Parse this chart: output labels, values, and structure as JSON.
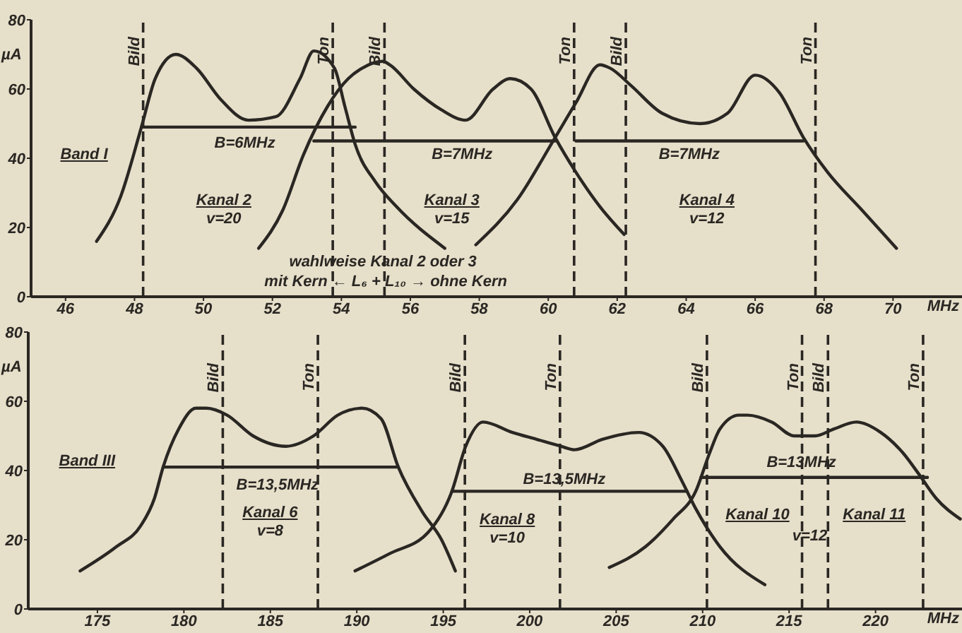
{
  "chart_data": [
    {
      "type": "line",
      "xlabel": "MHz",
      "ylabel": "µA",
      "xlim": [
        45,
        72
      ],
      "xticks": [
        46,
        48,
        50,
        52,
        54,
        56,
        58,
        60,
        62,
        64,
        66,
        68,
        70
      ],
      "ylim": [
        0,
        80
      ],
      "yticks": [
        0,
        20,
        40,
        60,
        80
      ],
      "marker": "none",
      "series": [
        {
          "color": "#2a2723",
          "x": [
            46.9,
            47.6,
            48.2,
            48.6,
            49.2,
            49.8,
            50.5,
            51.3,
            52.1,
            52.8,
            53.2,
            53.8,
            54.1,
            54.4,
            55.0,
            55.6,
            57.0
          ],
          "values": [
            16,
            29,
            49,
            63,
            70,
            66,
            57,
            51,
            52,
            63,
            71,
            66,
            55,
            44,
            33,
            26,
            14
          ]
        },
        {
          "color": "#2a2723",
          "x": [
            51.6,
            52.3,
            52.9,
            53.6,
            54.2,
            54.6,
            55.2,
            55.4,
            56.1,
            56.9,
            57.6,
            58.4,
            58.9,
            59.5,
            60.2,
            60.8,
            61.5,
            62.2
          ],
          "values": [
            14,
            25,
            41,
            55,
            63,
            66,
            68,
            67,
            60,
            54,
            51,
            60,
            63,
            60,
            46,
            36,
            26,
            18
          ]
        },
        {
          "color": "#2a2723",
          "x": [
            57.9,
            59.1,
            60.2,
            60.8,
            61.5,
            61.8,
            62.4,
            63.3,
            64.4,
            65.2,
            66.0,
            66.7,
            67.4,
            68.1,
            69.1,
            70.1
          ],
          "values": [
            15,
            28,
            46,
            56,
            67,
            66,
            61,
            53,
            50,
            53,
            64,
            59,
            46,
            36,
            25,
            14
          ]
        },
        {
          "color": "#2a2723",
          "x": [
            48.2,
            54.4
          ],
          "values": [
            49,
            49
          ]
        },
        {
          "color": "#2a2723",
          "x": [
            53.2,
            60.2
          ],
          "values": [
            45,
            45
          ]
        },
        {
          "color": "#2a2723",
          "x": [
            60.8,
            67.4
          ],
          "values": [
            45,
            45
          ]
        }
      ],
      "ref_lines": [
        {
          "axis": "x",
          "value": 48.25,
          "label": "Bild",
          "line_style": "dashed"
        },
        {
          "axis": "x",
          "value": 53.75,
          "label": "Ton",
          "line_style": "dashed"
        },
        {
          "axis": "x",
          "value": 55.25,
          "label": "Bild",
          "line_style": "dashed"
        },
        {
          "axis": "x",
          "value": 60.75,
          "label": "Ton",
          "line_style": "dashed"
        },
        {
          "axis": "x",
          "value": 62.25,
          "label": "Bild",
          "line_style": "dashed"
        },
        {
          "axis": "x",
          "value": 67.75,
          "label": "Ton",
          "line_style": "dashed"
        }
      ],
      "annotations": [
        "Band I",
        "B=6MHz",
        "B=7MHz",
        "B=7MHz",
        "Kanal 2\nv=20",
        "Kanal 3\nv=15",
        "Kanal 4\nv=12",
        "wahlweise Kanal 2 oder 3",
        "mit Kern ← L₆ + L₁₀ → ohne Kern"
      ]
    },
    {
      "type": "line",
      "xlabel": "MHz",
      "ylabel": "µA",
      "xlim": [
        171,
        225
      ],
      "xticks": [
        175,
        180,
        185,
        190,
        195,
        200,
        205,
        210,
        215,
        220
      ],
      "ylim": [
        0,
        80
      ],
      "yticks": [
        0,
        20,
        40,
        60,
        80
      ],
      "marker": "none",
      "series": [
        {
          "color": "#2a2723",
          "x": [
            174.0,
            176.1,
            177.5,
            178.3,
            178.8,
            179.7,
            180.7,
            181.3,
            182.5,
            184.0,
            185.9,
            187.5,
            188.9,
            190.3,
            191.4,
            192.4,
            193.8,
            194.9,
            195.7
          ],
          "values": [
            11,
            18,
            24,
            32,
            41,
            52,
            58,
            58,
            56,
            50,
            47,
            50,
            56,
            58,
            55,
            41,
            28,
            20,
            11
          ]
        },
        {
          "color": "#2a2723",
          "x": [
            189.9,
            191.9,
            194.1,
            195.5,
            196.3,
            197.3,
            199.0,
            200.4,
            201.8,
            202.6,
            204.2,
            206.3,
            207.7,
            208.8,
            209.6,
            211.0,
            213.6
          ],
          "values": [
            11,
            16,
            22,
            34,
            47,
            54,
            51,
            49,
            47,
            46,
            49,
            51,
            47,
            37,
            29,
            18,
            7
          ]
        },
        {
          "color": "#2a2723",
          "x": [
            204.6,
            206.7,
            208.3,
            209.6,
            210.4,
            211.0,
            212.1,
            212.6,
            214.0,
            215.3,
            216.5,
            217.6,
            218.9,
            220.3,
            221.6,
            222.5,
            223.5,
            224.9
          ],
          "values": [
            12,
            18,
            26,
            34,
            45,
            52,
            56,
            56,
            54,
            50,
            50,
            52,
            54,
            51,
            45,
            39,
            32,
            26
          ]
        },
        {
          "color": "#2a2723",
          "x": [
            178.8,
            192.4
          ],
          "values": [
            41,
            41
          ]
        },
        {
          "color": "#2a2723",
          "x": [
            195.5,
            209.1
          ],
          "values": [
            34,
            34
          ]
        },
        {
          "color": "#2a2723",
          "x": [
            209.9,
            223.0
          ],
          "values": [
            38,
            38
          ]
        }
      ],
      "ref_lines": [
        {
          "axis": "x",
          "value": 182.25,
          "label": "Bild",
          "line_style": "dashed"
        },
        {
          "axis": "x",
          "value": 187.75,
          "label": "Ton",
          "line_style": "dashed"
        },
        {
          "axis": "x",
          "value": 196.25,
          "label": "Bild",
          "line_style": "dashed"
        },
        {
          "axis": "x",
          "value": 201.75,
          "label": "Ton",
          "line_style": "dashed"
        },
        {
          "axis": "x",
          "value": 210.25,
          "label": "Bild",
          "line_style": "dashed"
        },
        {
          "axis": "x",
          "value": 215.75,
          "label": "Ton",
          "line_style": "dashed"
        },
        {
          "axis": "x",
          "value": 217.25,
          "label": "Bild",
          "line_style": "dashed"
        },
        {
          "axis": "x",
          "value": 222.75,
          "label": "Ton",
          "line_style": "dashed"
        }
      ],
      "annotations": [
        "Band III",
        "B=13,5MHz",
        "Kanal 6\nv=8",
        "B=13,5MHz",
        "Kanal 8\nv=10",
        "B=13MHz",
        "Kanal 10",
        "v=12",
        "Kanal 11"
      ]
    }
  ]
}
